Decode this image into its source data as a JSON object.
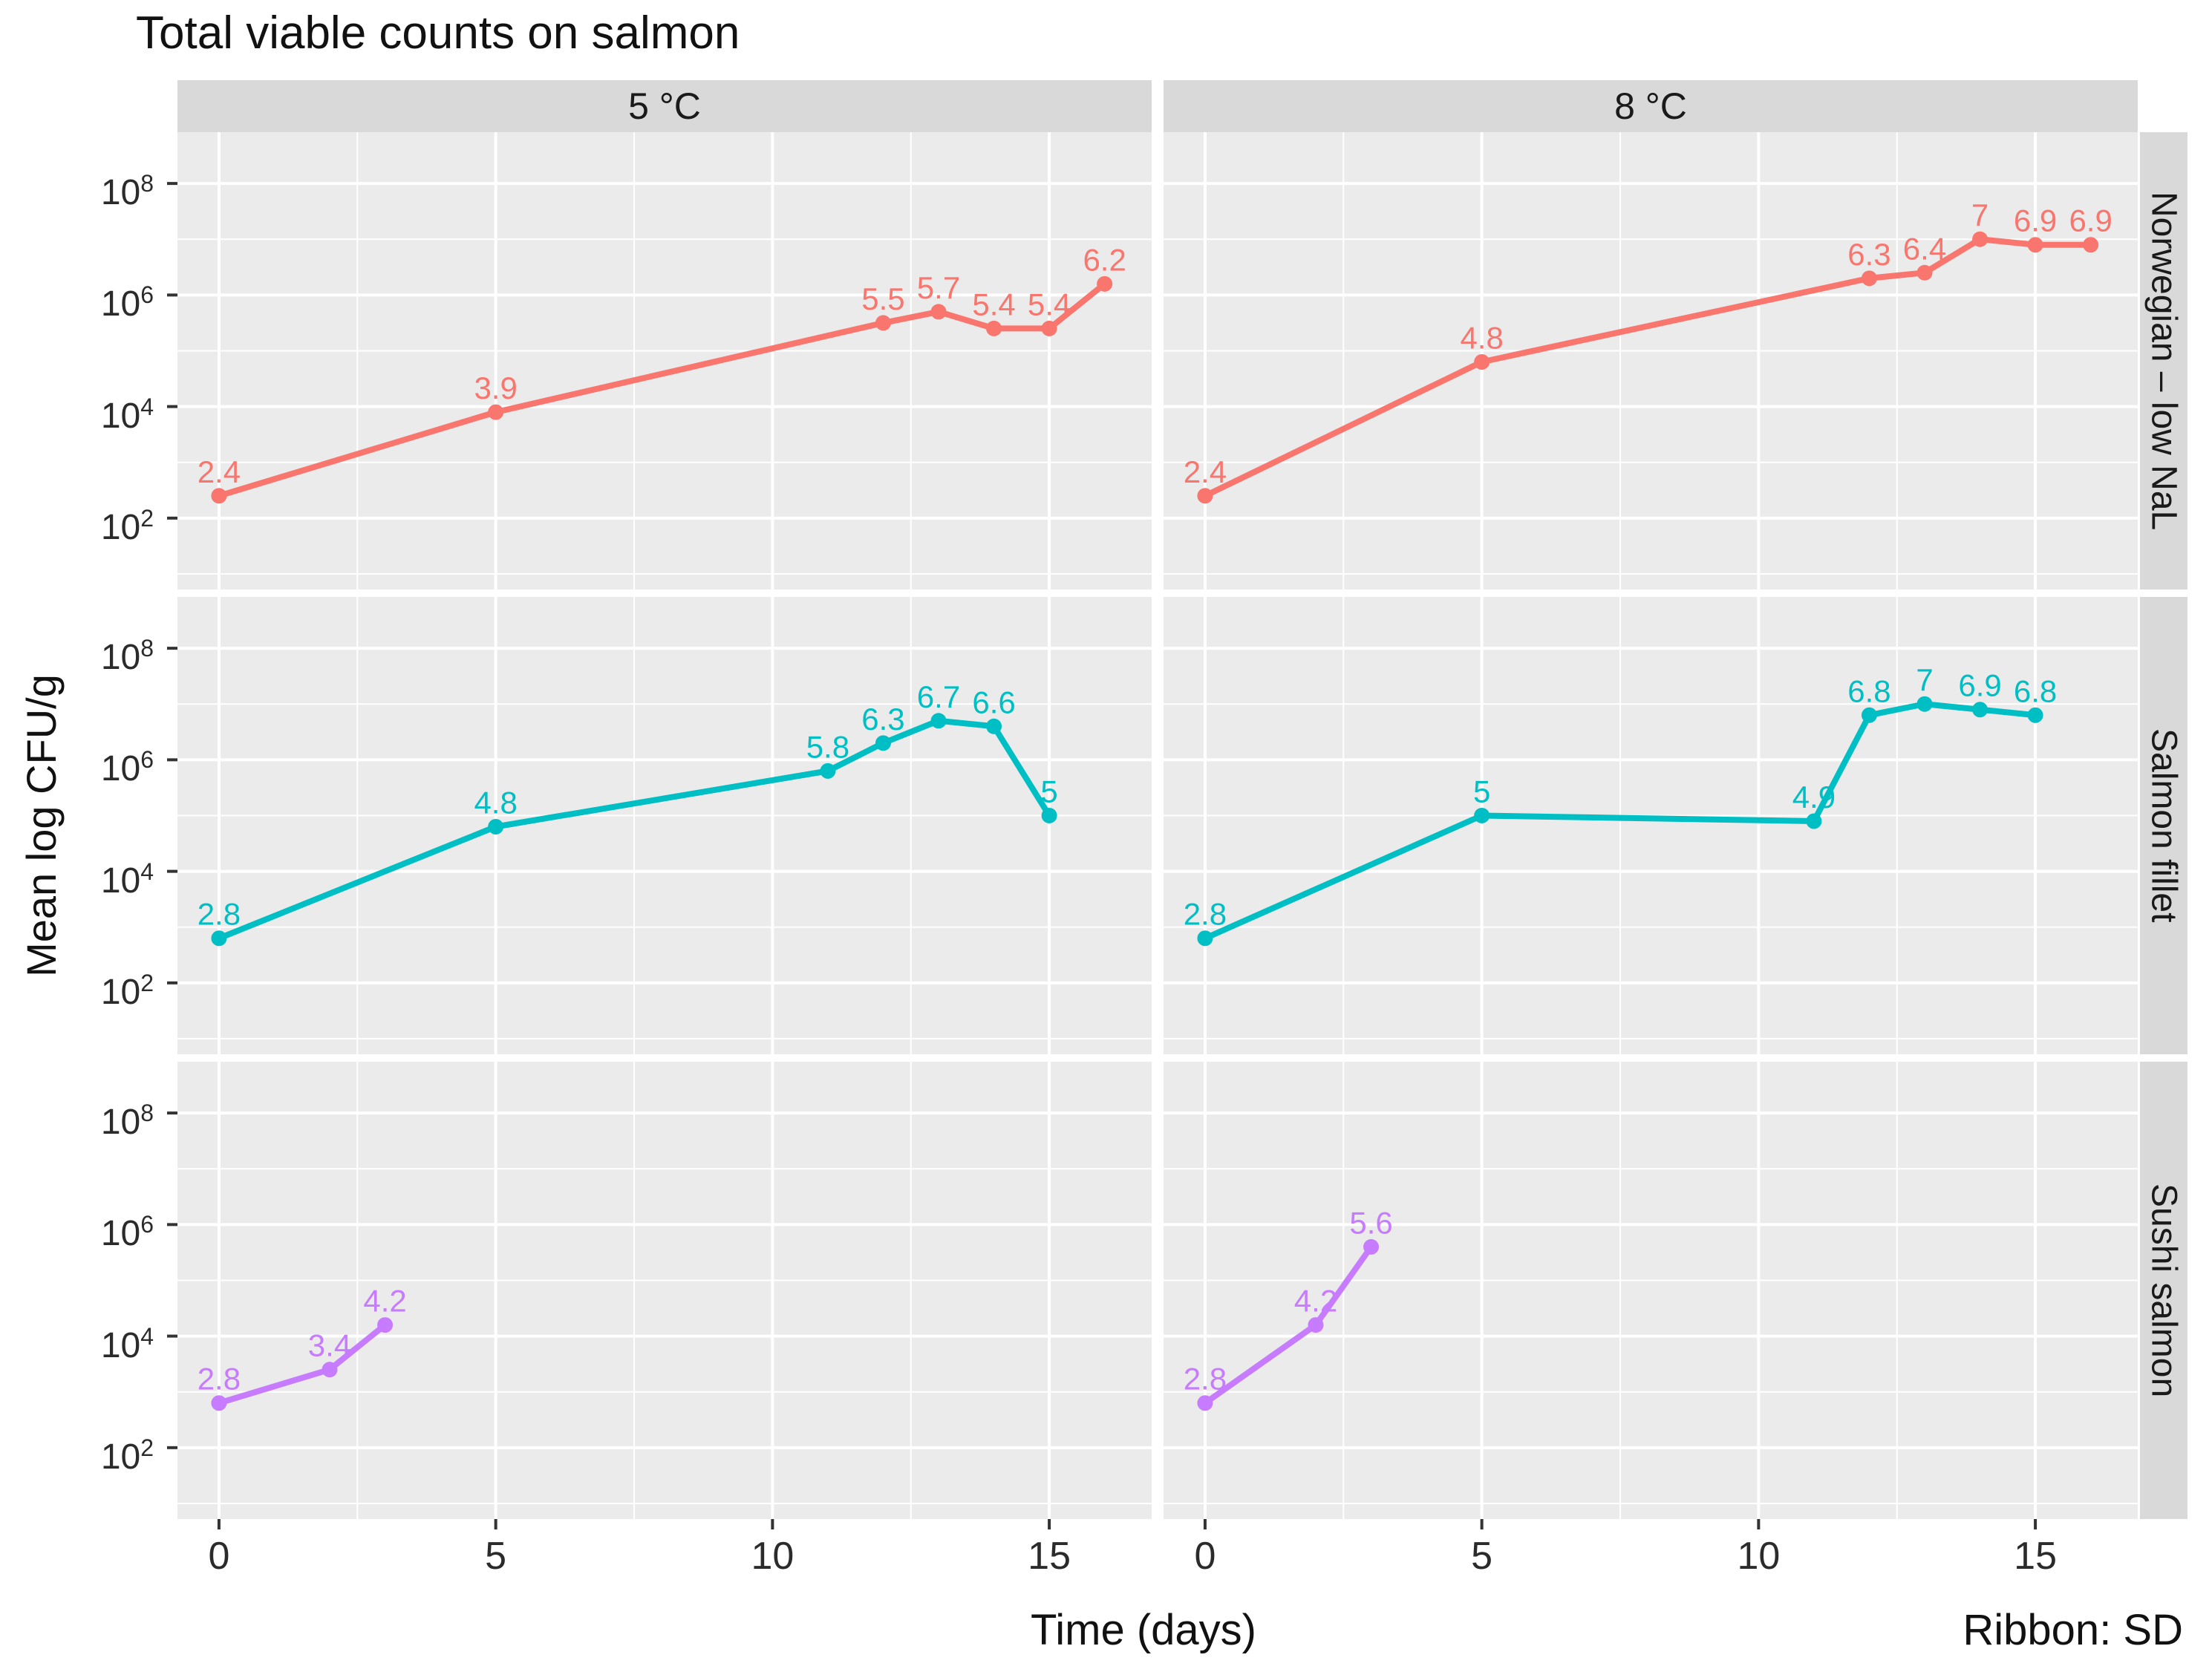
{
  "chart_data": {
    "type": "line",
    "title": "Total viable counts on salmon",
    "xlabel": "Time (days)",
    "ylabel": "Mean log CFU/g",
    "note": "Ribbon: SD",
    "facet_cols": [
      "5 °C",
      "8 °C"
    ],
    "facet_rows": [
      {
        "label": "Norwegian – low NaL",
        "color": "#F8766D"
      },
      {
        "label": "Salmon fillet",
        "color": "#00BFC4"
      },
      {
        "label": "Sushi salmon",
        "color": "#C77CFF"
      }
    ],
    "x_ticks": [
      0,
      5,
      10,
      15
    ],
    "x_minor_ticks": [
      2.5,
      7.5,
      12.5
    ],
    "y_major_exponents": [
      2,
      4,
      6,
      8
    ],
    "y_minor_exponents": [
      1,
      3,
      5,
      7
    ],
    "x_range": [
      -0.75,
      16.85
    ],
    "y_log_range": [
      0.72,
      8.92
    ],
    "axis_scale": "log10 CFU/g",
    "legend_position": "none",
    "grid": "on",
    "colors": {
      "panel_background": "#EBEBEB",
      "strip_background": "#D9D9D9",
      "gridline": "#FFFFFF",
      "tick_mark": "#333333",
      "text": "#1A1A1A"
    },
    "cells": [
      {
        "row": 0,
        "col": 0,
        "points": [
          {
            "x": 0,
            "y": 2.4,
            "label": "2.4"
          },
          {
            "x": 5,
            "y": 3.9,
            "label": "3.9"
          },
          {
            "x": 12,
            "y": 5.5,
            "label": "5.5"
          },
          {
            "x": 13,
            "y": 5.7,
            "label": "5.7"
          },
          {
            "x": 14,
            "y": 5.4,
            "label": "5.4"
          },
          {
            "x": 15,
            "y": 5.4,
            "label": "5.4"
          },
          {
            "x": 16,
            "y": 6.2,
            "label": "6.2"
          }
        ]
      },
      {
        "row": 0,
        "col": 1,
        "points": [
          {
            "x": 0,
            "y": 2.4,
            "label": "2.4"
          },
          {
            "x": 5,
            "y": 4.8,
            "label": "4.8"
          },
          {
            "x": 12,
            "y": 6.3,
            "label": "6.3"
          },
          {
            "x": 13,
            "y": 6.4,
            "label": "6.4"
          },
          {
            "x": 14,
            "y": 7.0,
            "label": "7"
          },
          {
            "x": 15,
            "y": 6.9,
            "label": "6.9"
          },
          {
            "x": 16,
            "y": 6.9,
            "label": "6.9"
          }
        ]
      },
      {
        "row": 1,
        "col": 0,
        "points": [
          {
            "x": 0,
            "y": 2.8,
            "label": "2.8"
          },
          {
            "x": 5,
            "y": 4.8,
            "label": "4.8"
          },
          {
            "x": 11,
            "y": 5.8,
            "label": "5.8"
          },
          {
            "x": 12,
            "y": 6.3,
            "label": "6.3"
          },
          {
            "x": 13,
            "y": 6.7,
            "label": "6.7"
          },
          {
            "x": 14,
            "y": 6.6,
            "label": "6.6"
          },
          {
            "x": 15,
            "y": 5.0,
            "label": "5"
          }
        ]
      },
      {
        "row": 1,
        "col": 1,
        "points": [
          {
            "x": 0,
            "y": 2.8,
            "label": "2.8"
          },
          {
            "x": 5,
            "y": 5.0,
            "label": "5"
          },
          {
            "x": 11,
            "y": 4.9,
            "label": "4.9"
          },
          {
            "x": 12,
            "y": 6.8,
            "label": "6.8"
          },
          {
            "x": 13,
            "y": 7.0,
            "label": "7"
          },
          {
            "x": 14,
            "y": 6.9,
            "label": "6.9"
          },
          {
            "x": 15,
            "y": 6.8,
            "label": "6.8"
          }
        ]
      },
      {
        "row": 2,
        "col": 0,
        "points": [
          {
            "x": 0,
            "y": 2.8,
            "label": "2.8"
          },
          {
            "x": 2,
            "y": 3.4,
            "label": "3.4"
          },
          {
            "x": 3,
            "y": 4.2,
            "label": "4.2"
          }
        ]
      },
      {
        "row": 2,
        "col": 1,
        "points": [
          {
            "x": 0,
            "y": 2.8,
            "label": "2.8"
          },
          {
            "x": 2,
            "y": 4.2,
            "label": "4.2"
          },
          {
            "x": 3,
            "y": 5.6,
            "label": "5.6"
          }
        ]
      }
    ]
  }
}
